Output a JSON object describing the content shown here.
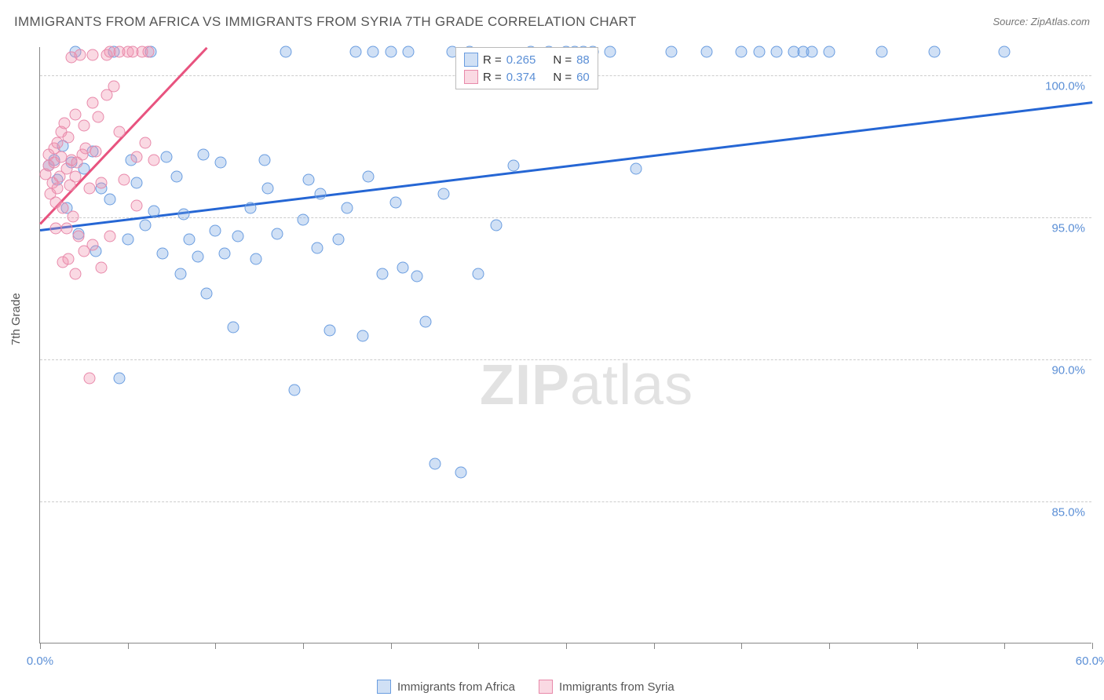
{
  "title": "IMMIGRANTS FROM AFRICA VS IMMIGRANTS FROM SYRIA 7TH GRADE CORRELATION CHART",
  "source": "Source: ZipAtlas.com",
  "y_axis_label": "7th Grade",
  "watermark_a": "ZIP",
  "watermark_b": "atlas",
  "chart": {
    "type": "scatter",
    "x_min": 0.0,
    "x_max": 60.0,
    "y_min": 80.0,
    "y_max": 101.0,
    "x_ticks": [
      0.0,
      5,
      10,
      15,
      20,
      25,
      30,
      35,
      40,
      45,
      50,
      55,
      60.0
    ],
    "x_tick_labels": {
      "0": "0.0%",
      "60": "60.0%"
    },
    "y_gridlines": [
      85.0,
      90.0,
      95.0,
      100.0
    ],
    "y_tick_labels": {
      "85": "85.0%",
      "90": "90.0%",
      "95": "95.0%",
      "100": "100.0%"
    },
    "grid_color": "#cccccc",
    "axis_color": "#888888",
    "background_color": "#ffffff",
    "marker_radius": 7.5,
    "series": [
      {
        "name": "Immigrants from Africa",
        "fill": "rgba(120,165,225,0.35)",
        "stroke": "#6a9de0",
        "line_color": "#2566d4",
        "R_label": "R =",
        "R": "0.265",
        "N_label": "N =",
        "N": "88",
        "trend": {
          "x1": 0,
          "y1": 94.6,
          "x2": 60,
          "y2": 99.1
        },
        "points": [
          [
            0.5,
            96.8
          ],
          [
            0.8,
            97.0
          ],
          [
            1.0,
            96.3
          ],
          [
            1.3,
            97.5
          ],
          [
            1.5,
            95.3
          ],
          [
            1.8,
            96.9
          ],
          [
            2.0,
            100.8
          ],
          [
            2.2,
            94.4
          ],
          [
            2.5,
            96.7
          ],
          [
            3.0,
            97.3
          ],
          [
            3.2,
            93.8
          ],
          [
            3.5,
            96.0
          ],
          [
            4.0,
            95.6
          ],
          [
            4.2,
            100.8
          ],
          [
            4.5,
            89.3
          ],
          [
            5.0,
            94.2
          ],
          [
            5.2,
            97.0
          ],
          [
            5.5,
            96.2
          ],
          [
            6.0,
            94.7
          ],
          [
            6.3,
            100.8
          ],
          [
            6.5,
            95.2
          ],
          [
            7.0,
            93.7
          ],
          [
            7.2,
            97.1
          ],
          [
            7.8,
            96.4
          ],
          [
            8.0,
            93.0
          ],
          [
            8.2,
            95.1
          ],
          [
            8.5,
            94.2
          ],
          [
            9.0,
            93.6
          ],
          [
            9.3,
            97.2
          ],
          [
            9.5,
            92.3
          ],
          [
            10.0,
            94.5
          ],
          [
            10.3,
            96.9
          ],
          [
            10.5,
            93.7
          ],
          [
            11.0,
            91.1
          ],
          [
            11.3,
            94.3
          ],
          [
            12.0,
            95.3
          ],
          [
            12.3,
            93.5
          ],
          [
            12.8,
            97.0
          ],
          [
            13.0,
            96.0
          ],
          [
            13.5,
            94.4
          ],
          [
            14.0,
            100.8
          ],
          [
            14.5,
            88.9
          ],
          [
            15.0,
            94.9
          ],
          [
            15.3,
            96.3
          ],
          [
            15.8,
            93.9
          ],
          [
            16.0,
            95.8
          ],
          [
            16.5,
            91.0
          ],
          [
            17.0,
            94.2
          ],
          [
            17.5,
            95.3
          ],
          [
            18.0,
            100.8
          ],
          [
            18.4,
            90.8
          ],
          [
            18.7,
            96.4
          ],
          [
            19.0,
            100.8
          ],
          [
            19.5,
            93.0
          ],
          [
            20.0,
            100.8
          ],
          [
            20.3,
            95.5
          ],
          [
            20.7,
            93.2
          ],
          [
            21.0,
            100.8
          ],
          [
            21.5,
            92.9
          ],
          [
            22.0,
            91.3
          ],
          [
            22.5,
            86.3
          ],
          [
            23.0,
            95.8
          ],
          [
            23.5,
            100.8
          ],
          [
            24.0,
            86.0
          ],
          [
            24.5,
            100.8
          ],
          [
            25.0,
            93.0
          ],
          [
            26.0,
            94.7
          ],
          [
            27.0,
            96.8
          ],
          [
            28.0,
            100.8
          ],
          [
            29.0,
            100.8
          ],
          [
            30.0,
            100.8
          ],
          [
            30.5,
            100.8
          ],
          [
            31.0,
            100.8
          ],
          [
            31.5,
            100.8
          ],
          [
            32.5,
            100.8
          ],
          [
            34.0,
            96.7
          ],
          [
            36.0,
            100.8
          ],
          [
            38.0,
            100.8
          ],
          [
            40.0,
            100.8
          ],
          [
            41.0,
            100.8
          ],
          [
            42.0,
            100.8
          ],
          [
            43.0,
            100.8
          ],
          [
            43.5,
            100.8
          ],
          [
            44.0,
            100.8
          ],
          [
            45.0,
            100.8
          ],
          [
            48.0,
            100.8
          ],
          [
            51.0,
            100.8
          ],
          [
            55.0,
            100.8
          ]
        ]
      },
      {
        "name": "Immigrants from Syria",
        "fill": "rgba(240,145,175,0.35)",
        "stroke": "#e889aa",
        "line_color": "#e8537f",
        "R_label": "R =",
        "R": "0.374",
        "N_label": "N =",
        "N": "60",
        "trend": {
          "x1": 0,
          "y1": 94.8,
          "x2": 9.5,
          "y2": 101.0
        },
        "points": [
          [
            0.3,
            96.5
          ],
          [
            0.5,
            96.8
          ],
          [
            0.5,
            97.2
          ],
          [
            0.6,
            95.8
          ],
          [
            0.7,
            96.2
          ],
          [
            0.8,
            97.4
          ],
          [
            0.8,
            96.9
          ],
          [
            0.9,
            95.5
          ],
          [
            1.0,
            97.6
          ],
          [
            1.0,
            96.0
          ],
          [
            1.1,
            96.4
          ],
          [
            1.2,
            98.0
          ],
          [
            1.2,
            97.1
          ],
          [
            1.3,
            95.3
          ],
          [
            1.4,
            98.3
          ],
          [
            1.5,
            96.7
          ],
          [
            1.5,
            94.6
          ],
          [
            1.6,
            97.8
          ],
          [
            1.7,
            96.1
          ],
          [
            1.8,
            100.6
          ],
          [
            1.8,
            97.0
          ],
          [
            1.9,
            95.0
          ],
          [
            2.0,
            96.4
          ],
          [
            2.0,
            98.6
          ],
          [
            2.1,
            96.9
          ],
          [
            2.2,
            94.3
          ],
          [
            2.3,
            100.7
          ],
          [
            2.4,
            97.2
          ],
          [
            2.5,
            98.2
          ],
          [
            2.6,
            97.4
          ],
          [
            2.8,
            89.3
          ],
          [
            2.8,
            96.0
          ],
          [
            3.0,
            100.7
          ],
          [
            3.0,
            99.0
          ],
          [
            3.2,
            97.3
          ],
          [
            3.3,
            98.5
          ],
          [
            3.5,
            96.2
          ],
          [
            3.8,
            99.3
          ],
          [
            3.8,
            100.7
          ],
          [
            4.0,
            100.8
          ],
          [
            4.2,
            99.6
          ],
          [
            4.5,
            100.8
          ],
          [
            4.5,
            98.0
          ],
          [
            5.0,
            100.8
          ],
          [
            5.3,
            100.8
          ],
          [
            5.8,
            100.8
          ],
          [
            5.5,
            97.1
          ],
          [
            6.0,
            97.6
          ],
          [
            6.2,
            100.8
          ],
          [
            6.5,
            97.0
          ],
          [
            4.8,
            96.3
          ],
          [
            5.5,
            95.4
          ],
          [
            3.0,
            94.0
          ],
          [
            2.5,
            93.8
          ],
          [
            1.3,
            93.4
          ],
          [
            0.9,
            94.6
          ],
          [
            1.6,
            93.5
          ],
          [
            4.0,
            94.3
          ],
          [
            3.5,
            93.2
          ],
          [
            2.0,
            93.0
          ]
        ]
      }
    ]
  },
  "bottom_legend": [
    {
      "label": "Immigrants from Africa"
    },
    {
      "label": "Immigrants from Syria"
    }
  ]
}
